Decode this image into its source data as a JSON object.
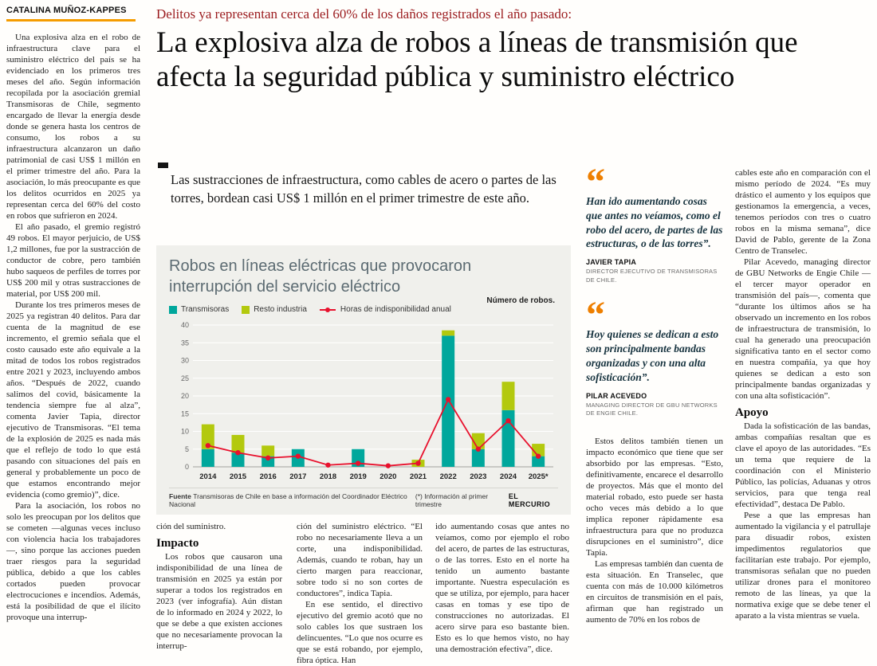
{
  "byline": "CATALINA MUÑOZ-KAPPES",
  "kicker": "Delitos ya representan cerca del 60% de los daños registrados el año pasado:",
  "headline": "La explosiva alza de robos a líneas de transmisión que afecta la seguridad pública y suministro eléctrico",
  "subhead": "Las sustracciones de infraestructura, como cables de acero o partes de las torres, bordean casi US$ 1 millón en el primer trimestre de este año.",
  "left_column": {
    "paragraphs": [
      "Una explosiva alza en el robo de infraestructura clave para el suministro eléctrico del país se ha evidenciado en los primeros tres meses del año. Según información recopilada por la asociación gremial Transmisoras de Chile, segmento encargado de llevar la energía desde donde se genera hasta los centros de consumo, los robos a su infraestructura alcanzaron un daño patrimonial de casi US$ 1 millón en el primer trimestre del año. Para la asociación, lo más preocupante es que los delitos ocurridos en 2025 ya representan cerca del 60% del costo en robos que sufrieron en 2024.",
      "El año pasado, el gremio registró 49 robos. El mayor perjuicio, de US$ 1,2 millones, fue por la sustracción de conductor de cobre, pero también hubo saqueos de perfiles de torres por US$ 200 mil y otras sustracciones de material, por US$ 200 mil.",
      "Durante los tres primeros meses de 2025 ya registran 40 delitos. Para dar cuenta de la magnitud de ese incremento, el gremio señala que el costo causado este año equivale a la mitad de todos los robos registrados entre 2021 y 2023, incluyendo ambos años. “Después de 2022, cuando salimos del covid, básicamente la tendencia siempre fue al alza”, comenta Javier Tapia, director ejecutivo de Transmisoras. “El tema de la explosión de 2025 es nada más que el reflejo de todo lo que está pasando con situaciones del país en general y probablemente un poco de que estamos encontrando mejor evidencia (como gremio)”, dice.",
      "Para la asociación, los robos no solo les preocupan por los delitos que se cometen —algunas veces incluso con violencia hacia los trabajadores—, sino porque las acciones pueden traer riesgos para la seguridad pública, debido a que los cables cortados pueden provocar electrocuciones e incendios. Además, está la posibilidad de que el ilícito provoque una interrup-"
    ]
  },
  "bottom_columns": {
    "col1": {
      "continuation": "ción del suministro.",
      "heading": "Impacto",
      "paragraph": "Los robos que causaron una indisponibilidad de una línea de transmisión en 2025 ya están por superar a todos los registrados en 2023 (ver infografía). Aún distan de lo informado en 2024 y 2022, lo que se debe a que existen acciones que no necesariamente provocan la interrup-"
    },
    "col2": {
      "paragraphs": [
        "ción del suministro eléctrico. “El robo no necesariamente lleva a un corte, una indisponibilidad. Además, cuando te roban, hay un cierto margen para reaccionar, sobre todo si no son cortes de conductores”, indica Tapia.",
        "En ese sentido, el directivo ejecutivo del gremio acotó que no solo cables los que sustraen los delincuentes. “Lo que nos ocurre es que se está robando, por ejemplo, fibra óptica. Han"
      ]
    },
    "col3": {
      "paragraph": "ido aumentando cosas que antes no veíamos, como por ejemplo el robo del acero, de partes de las estructuras, o de las torres. Esto en el norte ha tenido un aumento bastante importante. Nuestra especulación es que se utiliza, por ejemplo, para hacer casas en tomas y ese tipo de construcciones no autorizadas. El acero sirve para eso bastante bien. Esto es lo que hemos visto, no hay una demostración efectiva”, dice."
    }
  },
  "quote_column": {
    "quote_glyph": "“",
    "quotes": [
      {
        "text": "Han ido aumentando cosas que antes no veíamos, como el robo del acero, de partes de las estructuras, o de las torres”.",
        "name": "JAVIER TAPIA",
        "role": "DIRECTOR EJECUTIVO DE TRANSMISORAS DE CHILE."
      },
      {
        "text": "Hoy quienes se dedican a esto son principalmente bandas organizadas y con una alta sofisticación”.",
        "name": "PILAR ACEVEDO",
        "role": "MANAGING DIRECTOR DE GBU NETWORKS DE ENGIE CHILE."
      }
    ],
    "paragraphs": [
      "Estos delitos también tienen un impacto económico que tiene que ser absorbido por las empresas. “Esto, definitivamente, encarece el desarrollo de proyectos. Más que el monto del material robado, esto puede ser hasta ocho veces más debido a lo que implica reponer rápidamente esa infraestructura para que no produzca disrupciones en el suministro”, dice Tapia.",
      "Las empresas también dan cuenta de esta situación. En Transelec, que cuenta con más de 10.000 kilómetros en circuitos de transmisión en el país, afirman que han registrado un aumento de 70% en los robos de"
    ]
  },
  "right_column": {
    "paragraphs_before": [
      "cables este año en comparación con el mismo período de 2024. “Es muy drástico el aumento y los equipos que gestionamos la emergencia, a veces, tenemos períodos con tres o cuatro robos en la misma semana”, dice David de Pablo, gerente de la Zona Centro de Transelec.",
      "Pilar Acevedo, managing director de GBU Networks de Engie Chile —el tercer mayor operador en transmisión del país—, comenta que “durante los últimos años se ha observado un incremento en los robos de infraestructura de transmisión, lo cual ha generado una preocupación significativa tanto en el sector como en nuestra compañía, ya que hoy quienes se dedican a esto son principalmente bandas organizadas y con una alta sofisticación”."
    ],
    "heading": "Apoyo",
    "paragraphs_after": [
      "Dada la sofisticación de las bandas, ambas compañías resaltan que es clave el apoyo de las autoridades. “Es un tema que requiere de la coordinación con el Ministerio Público, las policías, Aduanas y otros servicios, para que tenga real efectividad”, destaca De Pablo.",
      "Pese a que las empresas han aumentado la vigilancia y el patrullaje para disuadir robos, existen impedimentos regulatorios que facilitarían este trabajo. Por ejemplo, transmisoras señalan que no pueden utilizar drones para el monitoreo remoto de las líneas, ya que la normativa exige que se debe tener el aparato a la vista mientras se vuela."
    ]
  },
  "chart_data": {
    "type": "bar",
    "stacked": true,
    "title": "Robos en líneas eléctricas que provocaron interrupción del servicio eléctrico",
    "unit_label": "Número de robos.",
    "categories": [
      "2014",
      "2015",
      "2016",
      "2017",
      "2018",
      "2019",
      "2020",
      "2021",
      "2022",
      "2023",
      "2024",
      "2025*"
    ],
    "series": [
      {
        "name": "Transmisoras",
        "type": "bar",
        "color": "#00a79c",
        "values": [
          5,
          4,
          3,
          5,
          0,
          5,
          0,
          0,
          37,
          5,
          16,
          3
        ]
      },
      {
        "name": "Resto industria",
        "type": "bar",
        "color": "#b3c90e",
        "values": [
          7,
          5,
          3,
          0,
          0,
          0,
          0,
          2,
          1.5,
          4.5,
          8,
          3.5
        ]
      },
      {
        "name": "Horas de indisponibilidad anual",
        "type": "line",
        "color": "#e8112d",
        "values": [
          6,
          4,
          2.5,
          3,
          0.5,
          1,
          0.3,
          1,
          19,
          5,
          13,
          3
        ]
      }
    ],
    "ylim": [
      0,
      40
    ],
    "yticks": [
      0,
      5,
      10,
      15,
      20,
      25,
      30,
      35,
      40
    ],
    "grid": true,
    "legend_position": "top",
    "source_label": "Fuente",
    "source": "Transmisoras de Chile en base a información del Coordinador Eléctrico Nacional",
    "footnote": "(*) Información al primer trimestre",
    "credit": "EL MERCURIO"
  },
  "colors": {
    "accent_orange": "#f59c00",
    "quote_orange": "#ee7f00",
    "kicker_red": "#9b1b1e",
    "chart_bg": "#f0f0ec",
    "quote_text": "#17333f"
  }
}
